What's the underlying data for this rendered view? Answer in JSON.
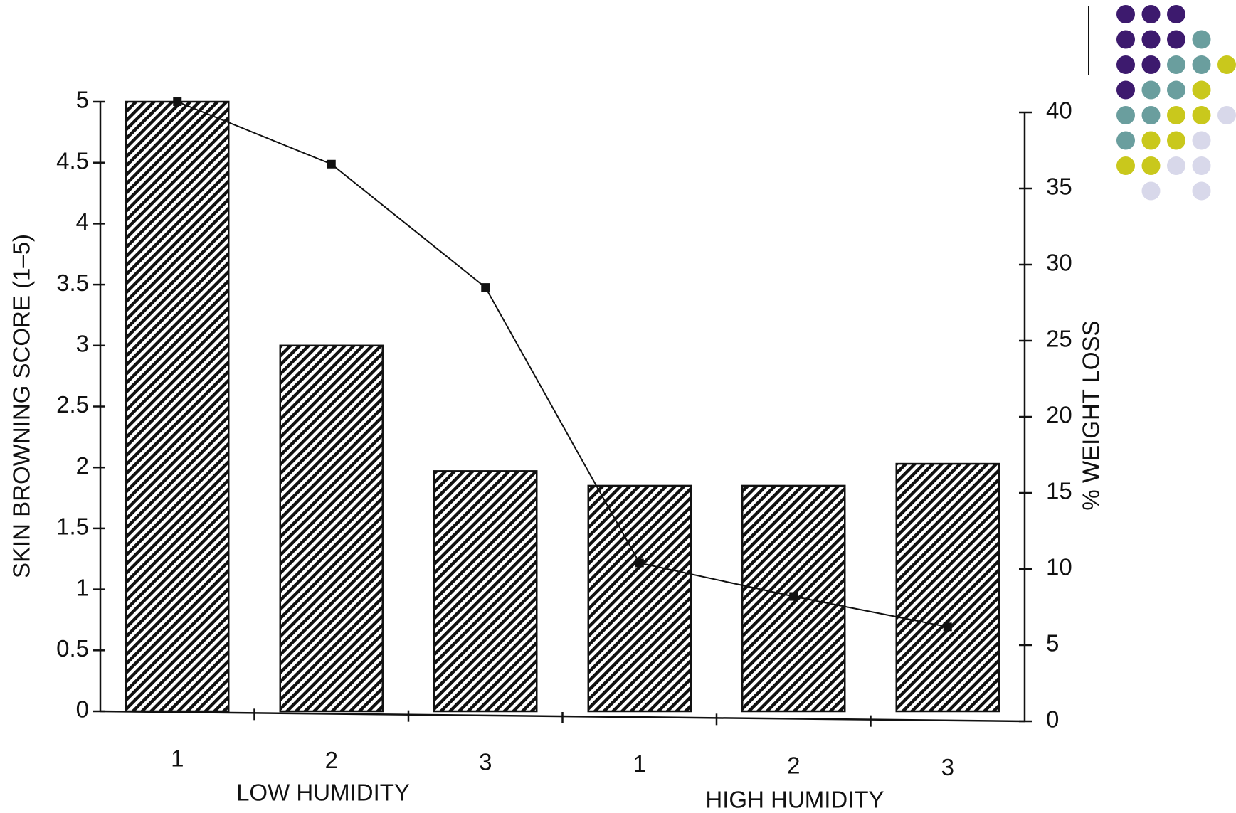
{
  "chart_data": {
    "type": "bar",
    "categories": [
      "1",
      "2",
      "3",
      "1",
      "2",
      "3"
    ],
    "group_labels": [
      "LOW HUMIDITY",
      "HIGH HUMIDITY"
    ],
    "y_label": "SKIN BROWNING SCORE (1–5)",
    "y2_label": "% WEIGHT LOSS",
    "series": [
      {
        "type": "bar",
        "color": "#111111",
        "values": [
          5,
          3,
          1.97,
          1.85,
          1.85,
          2.03
        ]
      },
      {
        "type": "line",
        "axis": "y2",
        "color": "#111111",
        "values": [
          40.7,
          36.6,
          28.5,
          10.4,
          8.2,
          6.2
        ]
      }
    ],
    "ylim": [
      0,
      5
    ],
    "yticks": [
      0,
      0.5,
      1,
      1.5,
      2,
      2.5,
      3,
      3.5,
      4,
      4.5,
      5
    ],
    "y2lim": [
      0,
      40
    ],
    "y2ticks": [
      0,
      5,
      10,
      15,
      20,
      25,
      30,
      35,
      40
    ],
    "grid": false
  }
}
